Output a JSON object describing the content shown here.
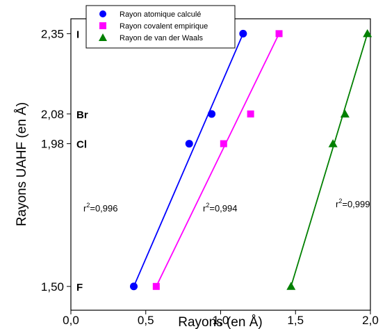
{
  "chart_data": {
    "type": "scatter",
    "xlabel": "Rayons (en Å)",
    "ylabel": "Rayons UAHF (en Å)",
    "xlim": [
      0.0,
      2.0
    ],
    "ylim": [
      1.42,
      2.4
    ],
    "x_ticks": [
      "0,0",
      "0,5",
      "1,0",
      "1,5",
      "2,0"
    ],
    "y_ticks": [
      "1,50",
      "1,98",
      "2,08",
      "2,35"
    ],
    "y_tick_values": [
      1.5,
      1.98,
      2.08,
      2.35
    ],
    "element_labels": [
      {
        "text": "I",
        "y": 2.35
      },
      {
        "text": "Br",
        "y": 2.08
      },
      {
        "text": "Cl",
        "y": 1.98
      },
      {
        "text": "F",
        "y": 1.5
      }
    ],
    "legend_position": "top-center",
    "grid": false,
    "series": [
      {
        "name": "Rayon atomique calculé",
        "marker": "circle",
        "color": "#0000ff",
        "x": [
          0.42,
          0.79,
          0.94,
          1.15
        ],
        "y": [
          1.5,
          1.98,
          2.08,
          2.35
        ],
        "fit": {
          "x": [
            0.42,
            1.15
          ],
          "y": [
            1.5,
            2.35
          ]
        },
        "r2_prefix": "r",
        "r2_exp": "2",
        "r2_value": "=0,996"
      },
      {
        "name": "Rayon covalent empirique",
        "marker": "square",
        "color": "#ff00ff",
        "x": [
          0.57,
          1.02,
          1.2,
          1.39
        ],
        "y": [
          1.5,
          1.98,
          2.08,
          2.35
        ],
        "fit": {
          "x": [
            0.57,
            1.39
          ],
          "y": [
            1.5,
            2.35
          ]
        },
        "r2_prefix": "r",
        "r2_exp": "2",
        "r2_value": "=0,994"
      },
      {
        "name": "Rayon de van der Waals",
        "marker": "triangle",
        "color": "#008000",
        "x": [
          1.47,
          1.75,
          1.83,
          1.98
        ],
        "y": [
          1.5,
          1.98,
          2.08,
          2.35
        ],
        "fit": {
          "x": [
            1.47,
            1.98
          ],
          "y": [
            1.5,
            2.35
          ]
        },
        "r2_prefix": "r",
        "r2_exp": "2",
        "r2_value": "=0,999"
      }
    ]
  }
}
